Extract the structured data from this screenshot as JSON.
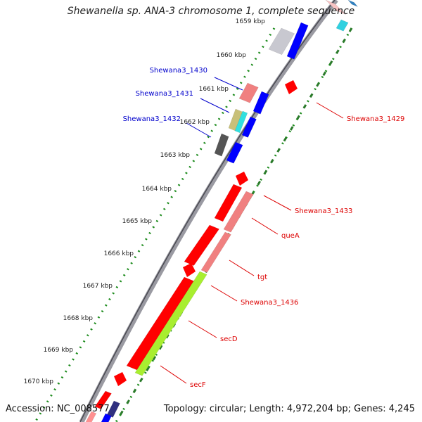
{
  "title": "Shewanella sp. ANA-3 chromosome 1, complete sequence",
  "footer": {
    "accession": "Accession: NC_008577",
    "topology": "Topology: circular; Length: 4,972,204 bp; Genes: 4,245"
  },
  "ticks": [
    {
      "label": "1659 kbp"
    },
    {
      "label": "1660 kbp"
    },
    {
      "label": "1661 kbp"
    },
    {
      "label": "1662 kbp"
    },
    {
      "label": "1663 kbp"
    },
    {
      "label": "1664 kbp"
    },
    {
      "label": "1665 kbp"
    },
    {
      "label": "1666 kbp"
    },
    {
      "label": "1667 kbp"
    },
    {
      "label": "1668 kbp"
    },
    {
      "label": "1669 kbp"
    },
    {
      "label": "1670 kbp"
    }
  ],
  "gene_labels_left": [
    {
      "label": "Shewana3_1430",
      "color": "#0000cc"
    },
    {
      "label": "Shewana3_1431",
      "color": "#0000cc"
    },
    {
      "label": "Shewana3_1432",
      "color": "#0000cc"
    }
  ],
  "gene_labels_right": [
    {
      "label": "Shewana3_1429",
      "color": "#dd0000"
    },
    {
      "label": "Shewana3_1433",
      "color": "#dd0000"
    },
    {
      "label": "queA",
      "color": "#dd0000"
    },
    {
      "label": "tgt",
      "color": "#dd0000"
    },
    {
      "label": "Shewana3_1436",
      "color": "#dd0000"
    },
    {
      "label": "secD",
      "color": "#dd0000"
    },
    {
      "label": "secF",
      "color": "#dd0000"
    }
  ],
  "colors": {
    "forward_cds": "#0000ff",
    "reverse_cds": "#ff0000",
    "light_red": "#f08080",
    "gray": "#c8c8d0",
    "dark_gray": "#555555",
    "green_dots": "#1a8a1a",
    "backbone": "#888888",
    "lime": "#a8ee30"
  }
}
